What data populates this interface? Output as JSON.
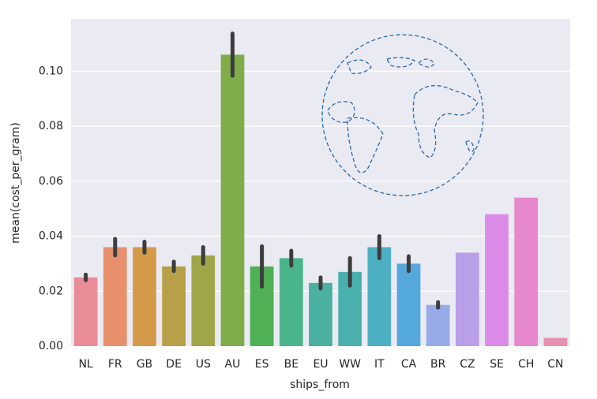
{
  "chart_data": {
    "type": "bar",
    "x_label": "ships_from",
    "y_label": "mean(cost_per_gram)",
    "categories": [
      "NL",
      "FR",
      "GB",
      "DE",
      "US",
      "AU",
      "ES",
      "BE",
      "EU",
      "WW",
      "IT",
      "CA",
      "BR",
      "CZ",
      "SE",
      "CH",
      "CN"
    ],
    "values": [
      0.025,
      0.036,
      0.036,
      0.029,
      0.033,
      0.106,
      0.029,
      0.032,
      0.023,
      0.027,
      0.036,
      0.03,
      0.015,
      0.034,
      0.048,
      0.054,
      0.003
    ],
    "errors": [
      0.001,
      0.003,
      0.002,
      0.0017,
      0.003,
      0.0077,
      0.0073,
      0.0027,
      0.002,
      0.005,
      0.004,
      0.0027,
      0.001,
      null,
      null,
      null,
      null
    ],
    "colors": [
      "#e88c98",
      "#e8906c",
      "#d49a4a",
      "#b8a048",
      "#a0a648",
      "#80ad4a",
      "#4fb055",
      "#4ab58a",
      "#4ab09f",
      "#4ab0ae",
      "#4cb0c2",
      "#55a8dc",
      "#98abe8",
      "#b99ee8",
      "#dc8ae8",
      "#e888cc",
      "#e890b0"
    ],
    "ylim": [
      0,
      0.119
    ],
    "yticks": [
      {
        "value": 0,
        "label": "0.00"
      },
      {
        "value": 0.02,
        "label": "0.02"
      },
      {
        "value": 0.04,
        "label": "0.04"
      },
      {
        "value": 0.06,
        "label": "0.06"
      },
      {
        "value": 0.08,
        "label": "0.08"
      },
      {
        "value": 0.1,
        "label": "0.10"
      }
    ],
    "grid": true
  }
}
